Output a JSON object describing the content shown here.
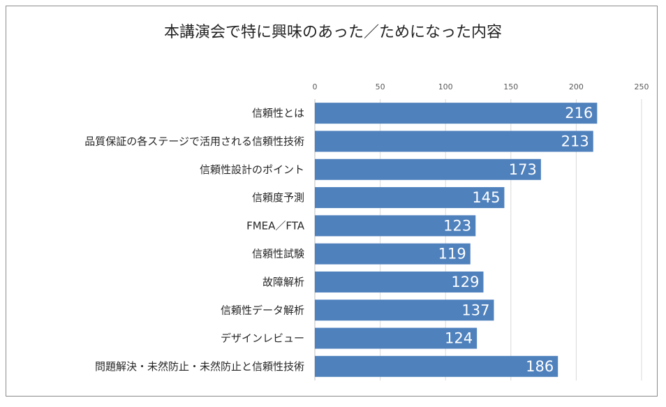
{
  "chart_data": {
    "type": "bar",
    "orientation": "horizontal",
    "title": "本講演会で特に興味のあった／ためになった内容",
    "xlabel": "",
    "ylabel": "",
    "xlim": [
      0,
      250
    ],
    "ticks": [
      0,
      50,
      100,
      150,
      200,
      250
    ],
    "tick_labels": [
      "0",
      "50",
      "100",
      "150",
      "200",
      "250"
    ],
    "categories": [
      "信頼性とは",
      "品質保証の各ステージで活用される信頼性技術",
      "信頼性設計のポイント",
      "信頼度予測",
      "FMEA／FTA",
      "信頼性試験",
      "故障解析",
      "信頼性データ解析",
      "デザインレビュー",
      "問題解決・未然防止・未然防止と信頼性技術"
    ],
    "values": [
      216,
      213,
      173,
      145,
      123,
      119,
      129,
      137,
      124,
      186
    ],
    "bar_color": "#4f81bd",
    "grid": true,
    "legend": "none"
  }
}
